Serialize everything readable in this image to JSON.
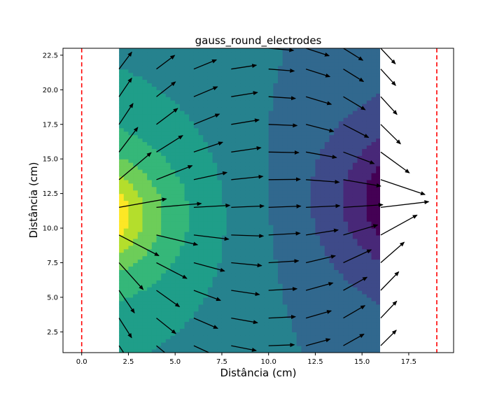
{
  "chart_data": {
    "type": "contour",
    "title": "gauss_round_electrodes",
    "xlabel": "Distância (cm)",
    "ylabel": "Distância (cm)",
    "xlim": [
      -1.0,
      19.9
    ],
    "ylim": [
      1.0,
      23.0
    ],
    "xticks": [
      "0.0",
      "2.5",
      "5.0",
      "7.5",
      "10.0",
      "12.5",
      "15.0",
      "17.5"
    ],
    "xtick_values": [
      0,
      2.5,
      5,
      7.5,
      10,
      12.5,
      15,
      17.5
    ],
    "yticks": [
      "2.5",
      "5.0",
      "7.5",
      "10.0",
      "12.5",
      "15.0",
      "17.5",
      "20.0",
      "22.5"
    ],
    "ytick_values": [
      2.5,
      5,
      7.5,
      10,
      12.5,
      15,
      17.5,
      20,
      22.5
    ],
    "field_region": {
      "x": [
        2.0,
        16.0
      ],
      "y": [
        1.0,
        23.0
      ]
    },
    "electrodes": [
      {
        "x": 0.0,
        "color": "#ff0000",
        "style": "dashed"
      },
      {
        "x": 19.0,
        "color": "#ff0000",
        "style": "dashed"
      }
    ],
    "colormap": "viridis",
    "grid": false,
    "legend": "none"
  }
}
